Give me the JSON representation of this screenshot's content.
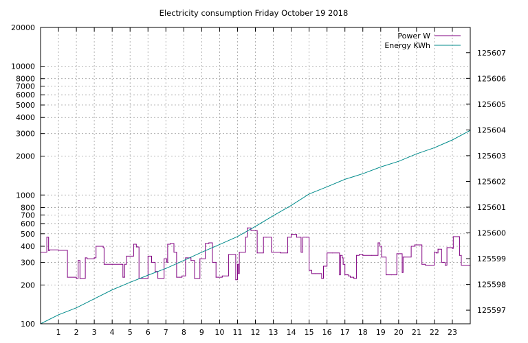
{
  "chart_data": {
    "type": "line",
    "title": "Electricity consumption Friday October 19 2018",
    "xlabel": "",
    "ylabel": "",
    "y2label": "",
    "grid": true,
    "legend_position": "top-right",
    "x_range": [
      0,
      24
    ],
    "x_ticks": [
      1,
      2,
      3,
      4,
      5,
      6,
      7,
      8,
      9,
      10,
      11,
      12,
      13,
      14,
      15,
      16,
      17,
      18,
      19,
      20,
      21,
      22,
      23
    ],
    "y_scale": "log",
    "y_range": [
      100,
      20000
    ],
    "y_ticks": [
      100,
      200,
      300,
      400,
      500,
      600,
      700,
      800,
      1000,
      2000,
      3000,
      4000,
      5000,
      6000,
      7000,
      8000,
      10000,
      20000
    ],
    "y2_range": [
      125596.47,
      125607.98
    ],
    "y2_ticks": [
      125597,
      125598,
      125599,
      125600,
      125601,
      125602,
      125603,
      125604,
      125605,
      125606,
      125607
    ],
    "series": [
      {
        "name": "Power W",
        "color": "#800080",
        "axis": "y",
        "step": true,
        "x": [
          0,
          0.35,
          0.45,
          0.5,
          1.0,
          1.5,
          2.0,
          2.1,
          2.2,
          2.5,
          2.6,
          3.0,
          3.1,
          3.5,
          3.55,
          4.0,
          4.5,
          4.6,
          4.7,
          4.8,
          5.0,
          5.2,
          5.35,
          5.5,
          5.7,
          6.0,
          6.2,
          6.4,
          6.55,
          6.9,
          7.05,
          7.1,
          7.25,
          7.45,
          7.6,
          7.75,
          7.9,
          8.1,
          8.4,
          8.6,
          8.9,
          9.2,
          9.4,
          9.6,
          9.8,
          9.95,
          10.15,
          10.5,
          10.9,
          11.0,
          11.05,
          11.1,
          11.2,
          11.45,
          11.55,
          11.75,
          12.1,
          12.45,
          12.6,
          12.9,
          13.4,
          13.8,
          14.0,
          14.3,
          14.55,
          14.65,
          14.85,
          15.0,
          15.15,
          15.35,
          15.6,
          15.7,
          15.8,
          16.0,
          16.3,
          16.7,
          16.75,
          16.85,
          16.9,
          17.0,
          17.15,
          17.2,
          17.3,
          17.5,
          17.65,
          17.8,
          18.0,
          18.5,
          18.85,
          18.95,
          19.05,
          19.3,
          19.6,
          19.9,
          20.2,
          20.25,
          20.35,
          20.7,
          20.9,
          21.3,
          21.5,
          21.7,
          22.0,
          22.1,
          22.2,
          22.4,
          22.6,
          22.7,
          23.0,
          23.05,
          23.35,
          23.4,
          23.5,
          24.0
        ],
        "values": [
          360,
          470,
          370,
          375,
          372,
          230,
          225,
          310,
          225,
          325,
          320,
          325,
          400,
          390,
          290,
          290,
          290,
          230,
          290,
          335,
          335,
          415,
          395,
          225,
          225,
          335,
          300,
          255,
          225,
          320,
          300,
          415,
          420,
          360,
          230,
          230,
          235,
          325,
          310,
          225,
          320,
          420,
          425,
          300,
          230,
          230,
          235,
          345,
          220,
          290,
          245,
          360,
          360,
          470,
          555,
          530,
          355,
          470,
          470,
          360,
          355,
          470,
          495,
          470,
          360,
          470,
          470,
          260,
          245,
          245,
          245,
          225,
          280,
          355,
          355,
          240,
          340,
          325,
          290,
          240,
          240,
          235,
          230,
          225,
          340,
          345,
          340,
          340,
          425,
          400,
          330,
          240,
          240,
          350,
          250,
          330,
          330,
          400,
          410,
          290,
          285,
          285,
          360,
          355,
          380,
          300,
          285,
          390,
          385,
          475,
          475,
          340,
          285,
          285
        ]
      },
      {
        "name": "Energy KWh",
        "color": "#008b8b",
        "axis": "y2",
        "step": false,
        "x": [
          0,
          1,
          2,
          3,
          4,
          5,
          6,
          7,
          8,
          9,
          10,
          11,
          12,
          13,
          14,
          15,
          16,
          17,
          18,
          19,
          20,
          21,
          22,
          23,
          24
        ],
        "values": [
          125596.47,
          125596.82,
          125597.09,
          125597.44,
          125597.79,
          125598.08,
          125598.36,
          125598.62,
          125598.93,
          125599.25,
          125599.55,
          125599.86,
          125600.25,
          125600.67,
          125601.07,
          125601.51,
          125601.79,
          125602.08,
          125602.3,
          125602.56,
          125602.78,
          125603.07,
          125603.31,
          125603.61,
          125603.98
        ]
      }
    ]
  }
}
